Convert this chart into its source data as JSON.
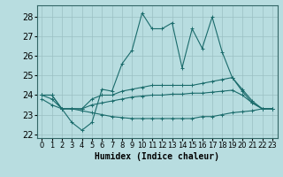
{
  "bg_color": "#b8dde0",
  "grid_color": "#9bbfc2",
  "line_color": "#1a6b6b",
  "xlabel": "Humidex (Indice chaleur)",
  "xlabel_fontsize": 7,
  "tick_fontsize": 6,
  "xlim": [
    -0.5,
    23.5
  ],
  "ylim": [
    21.8,
    28.6
  ],
  "yticks": [
    22,
    23,
    24,
    25,
    26,
    27,
    28
  ],
  "xticks": [
    0,
    1,
    2,
    3,
    4,
    5,
    6,
    7,
    8,
    9,
    10,
    11,
    12,
    13,
    14,
    15,
    16,
    17,
    18,
    19,
    20,
    21,
    22,
    23
  ],
  "series": [
    [
      24.0,
      24.0,
      23.3,
      22.6,
      22.2,
      22.6,
      24.3,
      24.2,
      25.6,
      26.3,
      28.2,
      27.4,
      27.4,
      27.7,
      25.4,
      27.4,
      26.4,
      28.0,
      26.2,
      24.9,
      24.2,
      23.6,
      23.3,
      23.3
    ],
    [
      24.0,
      24.0,
      23.3,
      23.3,
      23.3,
      23.8,
      24.0,
      24.0,
      24.2,
      24.3,
      24.4,
      24.5,
      24.5,
      24.5,
      24.5,
      24.5,
      24.6,
      24.7,
      24.8,
      24.9,
      24.3,
      23.7,
      23.3,
      23.3
    ],
    [
      24.0,
      23.8,
      23.3,
      23.3,
      23.3,
      23.5,
      23.6,
      23.7,
      23.8,
      23.9,
      23.95,
      24.0,
      24.0,
      24.05,
      24.05,
      24.1,
      24.1,
      24.15,
      24.2,
      24.25,
      24.0,
      23.6,
      23.3,
      23.3
    ],
    [
      23.8,
      23.5,
      23.3,
      23.3,
      23.2,
      23.1,
      23.0,
      22.9,
      22.85,
      22.8,
      22.8,
      22.8,
      22.8,
      22.8,
      22.8,
      22.8,
      22.9,
      22.9,
      23.0,
      23.1,
      23.15,
      23.2,
      23.3,
      23.3
    ]
  ]
}
